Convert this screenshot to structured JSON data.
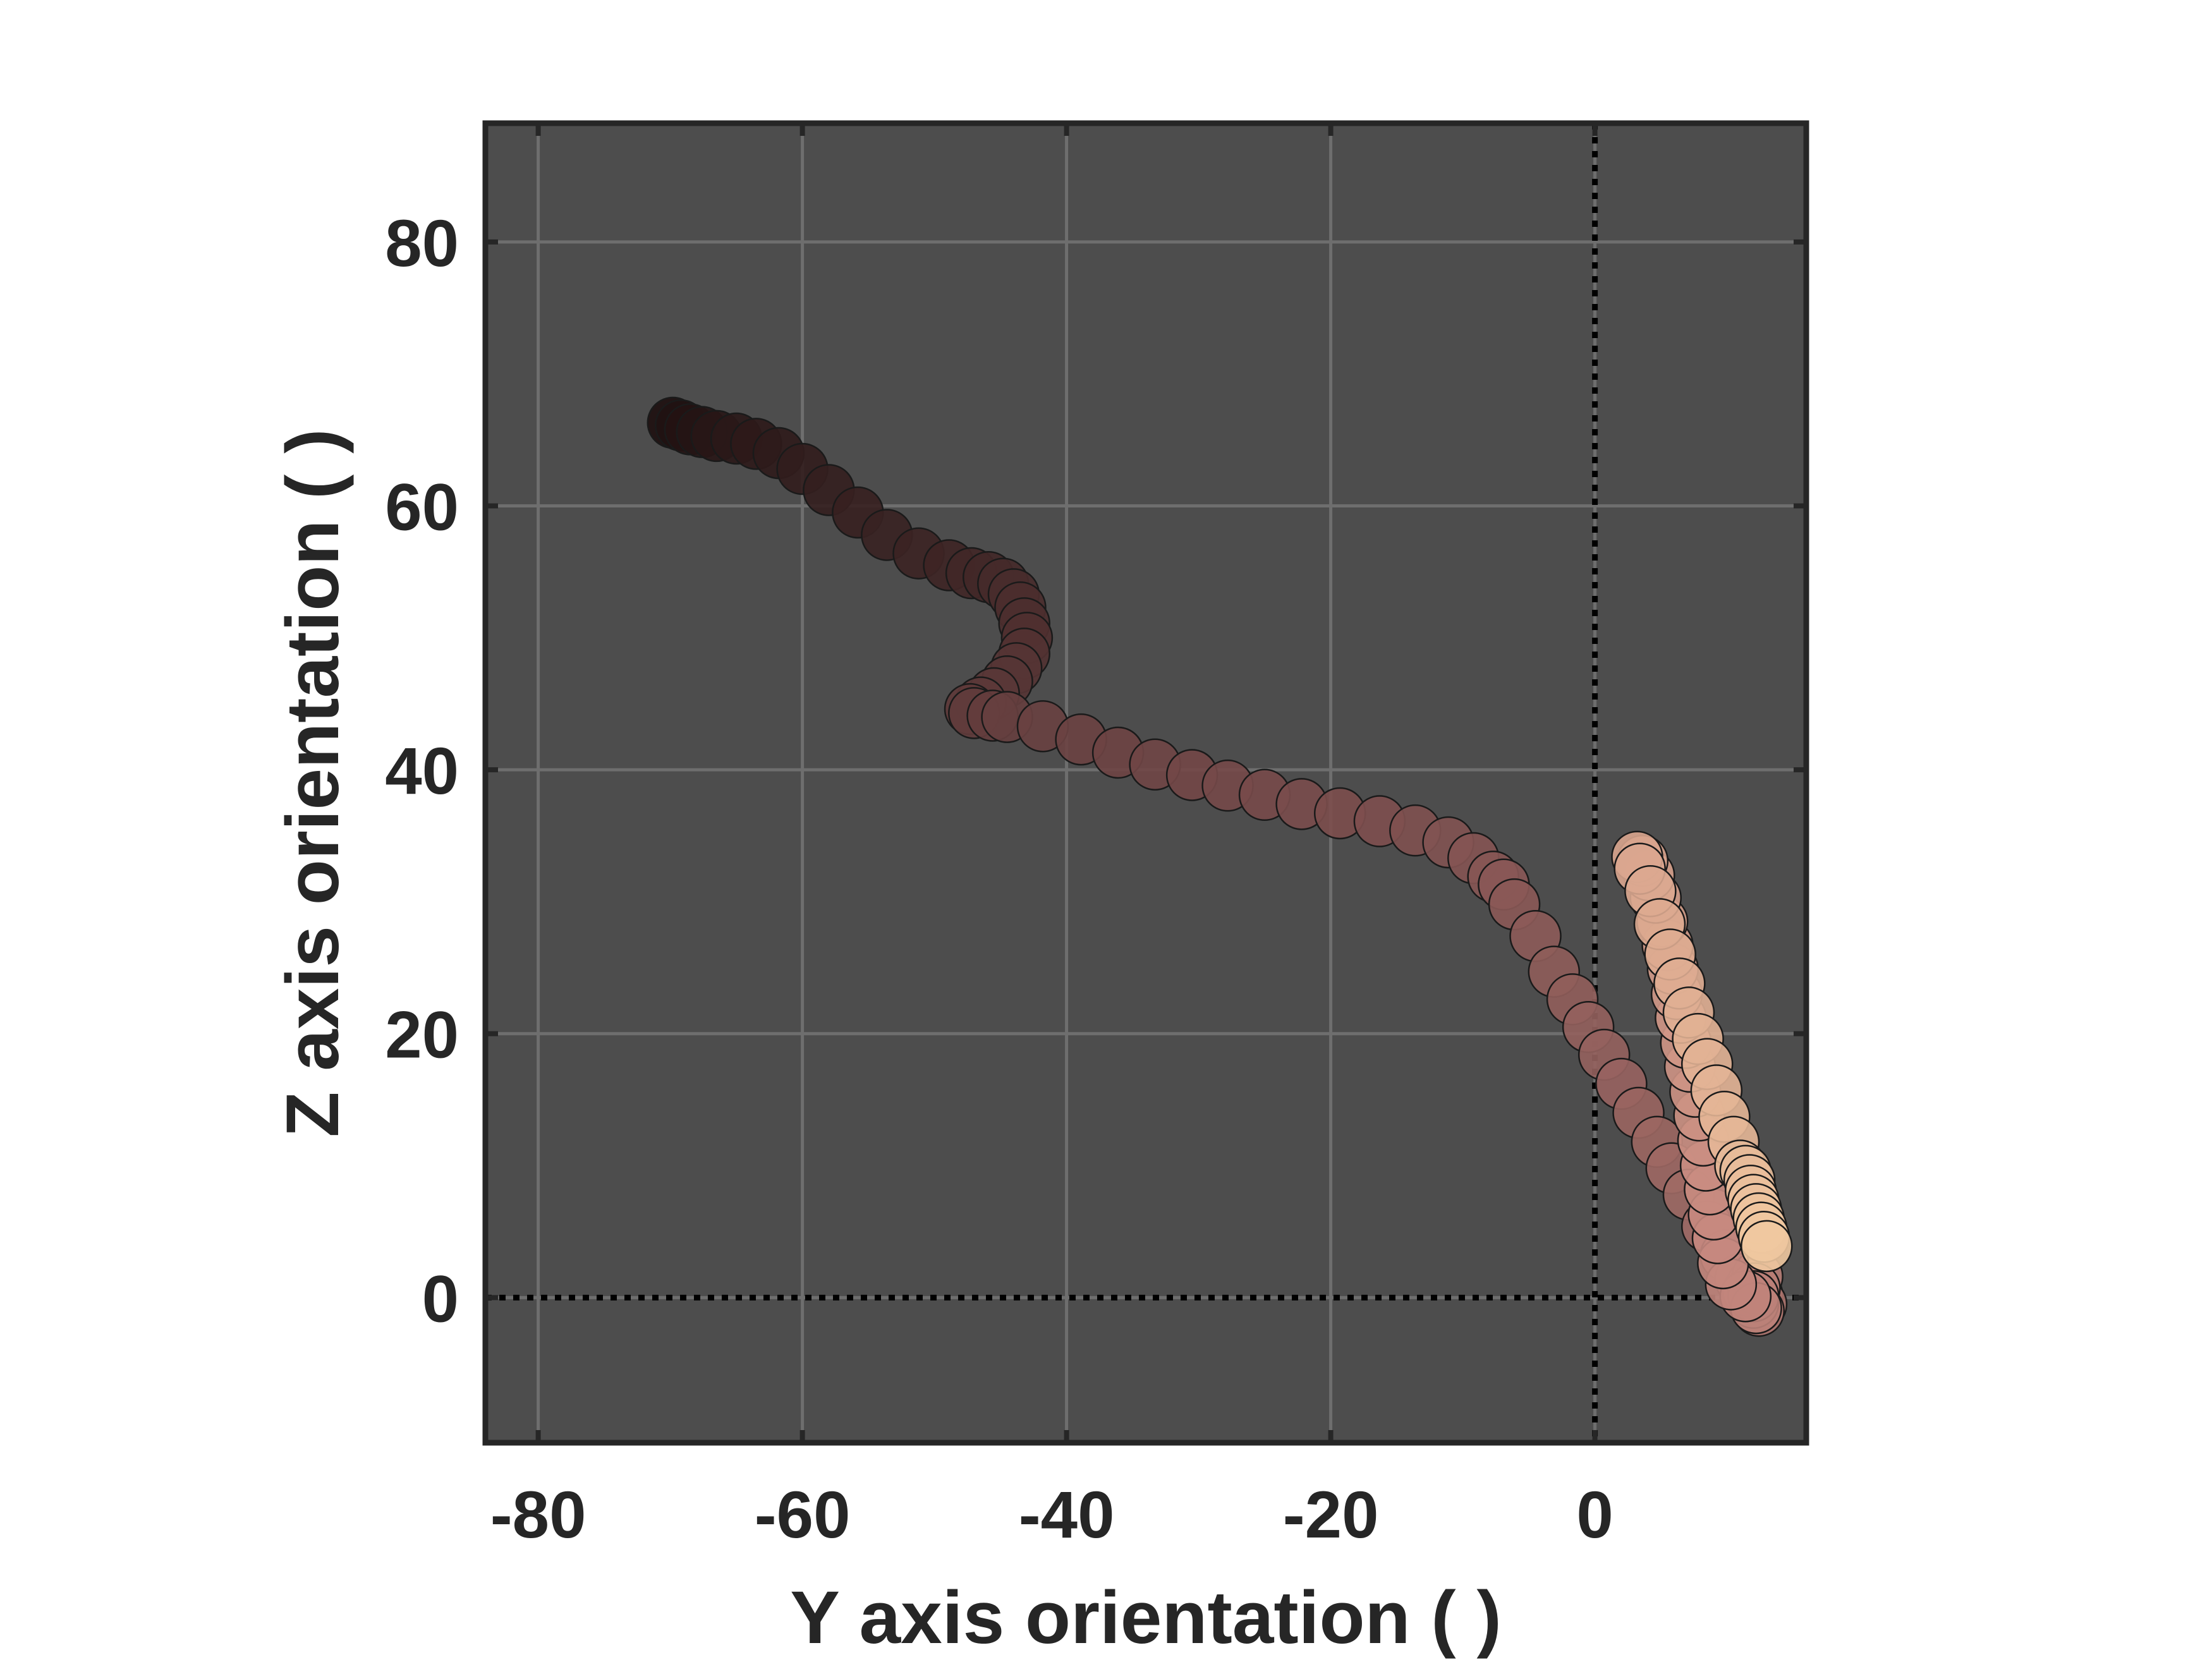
{
  "chart_data": {
    "type": "scatter",
    "xlabel": "Y axis orientation (  )",
    "ylabel": "Z axis orientation (  )",
    "xlim": [
      -84,
      16
    ],
    "ylim": [
      -11,
      89
    ],
    "xticks": [
      -80,
      -60,
      -40,
      -20,
      0
    ],
    "yticks": [
      0,
      20,
      40,
      60,
      80
    ],
    "grid": true,
    "reference_lines": {
      "x": 0,
      "y": 0,
      "style": "dotted"
    },
    "colors": {
      "plot_background": "#4d4d4d",
      "grid": "#6e6e6e",
      "axes_frame": "#262626",
      "marker_start": "#1e1010",
      "marker_mid": "#7a4c4c",
      "marker_late": "#c88a80",
      "marker_end": "#f0c8a0",
      "marker_edge": "#1a1a1a"
    },
    "series": [
      {
        "points": [
          [
            -69.8,
            66.3
          ],
          [
            -69.2,
            66.1
          ],
          [
            -68.5,
            65.8
          ],
          [
            -67.6,
            65.6
          ],
          [
            -66.5,
            65.3
          ],
          [
            -65.0,
            65.1
          ],
          [
            -63.5,
            64.7
          ],
          [
            -61.8,
            64.0
          ],
          [
            -60.0,
            62.8
          ],
          [
            -58.0,
            61.2
          ],
          [
            -55.8,
            59.5
          ],
          [
            -53.6,
            57.8
          ],
          [
            -51.2,
            56.4
          ],
          [
            -48.9,
            55.5
          ],
          [
            -47.2,
            54.9
          ],
          [
            -45.9,
            54.6
          ],
          [
            -44.8,
            54.1
          ],
          [
            -44.0,
            53.3
          ],
          [
            -43.5,
            52.3
          ],
          [
            -43.2,
            51.1
          ],
          [
            -43.0,
            50.0
          ],
          [
            -43.2,
            48.8
          ],
          [
            -43.8,
            47.7
          ],
          [
            -44.5,
            46.7
          ],
          [
            -45.5,
            45.8
          ],
          [
            -46.5,
            45.1
          ],
          [
            -47.3,
            44.6
          ],
          [
            -47.0,
            44.3
          ],
          [
            -45.6,
            44.1
          ],
          [
            -44.5,
            44.0
          ],
          [
            -41.8,
            43.3
          ],
          [
            -38.9,
            42.3
          ],
          [
            -36.1,
            41.3
          ],
          [
            -33.3,
            40.4
          ],
          [
            -30.5,
            39.6
          ],
          [
            -27.8,
            38.8
          ],
          [
            -25.0,
            38.1
          ],
          [
            -22.2,
            37.4
          ],
          [
            -19.3,
            36.7
          ],
          [
            -16.3,
            36.1
          ],
          [
            -13.6,
            35.4
          ],
          [
            -11.1,
            34.5
          ],
          [
            -9.2,
            33.3
          ],
          [
            -7.7,
            31.9
          ],
          [
            -6.9,
            31.3
          ],
          [
            -6.1,
            29.8
          ],
          [
            -4.5,
            27.4
          ],
          [
            -3.1,
            24.7
          ],
          [
            -1.7,
            22.6
          ],
          [
            -0.5,
            20.5
          ],
          [
            0.7,
            18.4
          ],
          [
            2.0,
            16.2
          ],
          [
            3.3,
            14.0
          ],
          [
            4.7,
            11.8
          ],
          [
            5.8,
            9.8
          ],
          [
            7.1,
            7.8
          ],
          [
            8.5,
            5.4
          ],
          [
            9.9,
            3.2
          ],
          [
            11.0,
            1.4
          ],
          [
            11.8,
            0.7
          ],
          [
            12.3,
            0.2
          ],
          [
            12.6,
            -0.5
          ],
          [
            12.4,
            -1.0
          ],
          [
            12.0,
            -0.4
          ],
          [
            11.6,
            0.5
          ],
          [
            11.9,
            1.0
          ],
          [
            12.3,
            1.6
          ],
          [
            12.1,
            0.7
          ],
          [
            12.0,
            0.1
          ],
          [
            12.2,
            -0.8
          ],
          [
            11.4,
            0.1
          ],
          [
            10.3,
            1.0
          ],
          [
            9.7,
            2.6
          ],
          [
            9.3,
            4.5
          ],
          [
            9.0,
            6.3
          ],
          [
            8.7,
            8.2
          ],
          [
            8.4,
            10.0
          ],
          [
            8.2,
            11.9
          ],
          [
            7.9,
            13.8
          ],
          [
            7.6,
            15.6
          ],
          [
            7.2,
            17.5
          ],
          [
            6.9,
            19.3
          ],
          [
            6.5,
            21.2
          ],
          [
            6.2,
            23.0
          ],
          [
            5.9,
            24.9
          ],
          [
            5.5,
            26.7
          ],
          [
            5.1,
            28.5
          ],
          [
            4.6,
            30.3
          ],
          [
            4.1,
            32.0
          ],
          [
            3.6,
            33.1
          ],
          [
            3.2,
            33.4
          ],
          [
            3.4,
            32.5
          ],
          [
            4.2,
            30.8
          ],
          [
            4.9,
            28.3
          ],
          [
            5.7,
            26.0
          ],
          [
            6.4,
            23.8
          ],
          [
            7.1,
            21.6
          ],
          [
            7.8,
            19.6
          ],
          [
            8.5,
            17.7
          ],
          [
            9.2,
            15.7
          ],
          [
            9.8,
            13.7
          ],
          [
            10.5,
            11.8
          ],
          [
            11.0,
            10.0
          ],
          [
            11.4,
            9.6
          ],
          [
            11.7,
            8.9
          ],
          [
            11.8,
            8.1
          ],
          [
            12.0,
            7.4
          ],
          [
            12.2,
            6.7
          ],
          [
            12.4,
            6.0
          ],
          [
            12.6,
            5.3
          ],
          [
            12.8,
            4.6
          ],
          [
            13.0,
            3.9
          ]
        ]
      }
    ]
  }
}
